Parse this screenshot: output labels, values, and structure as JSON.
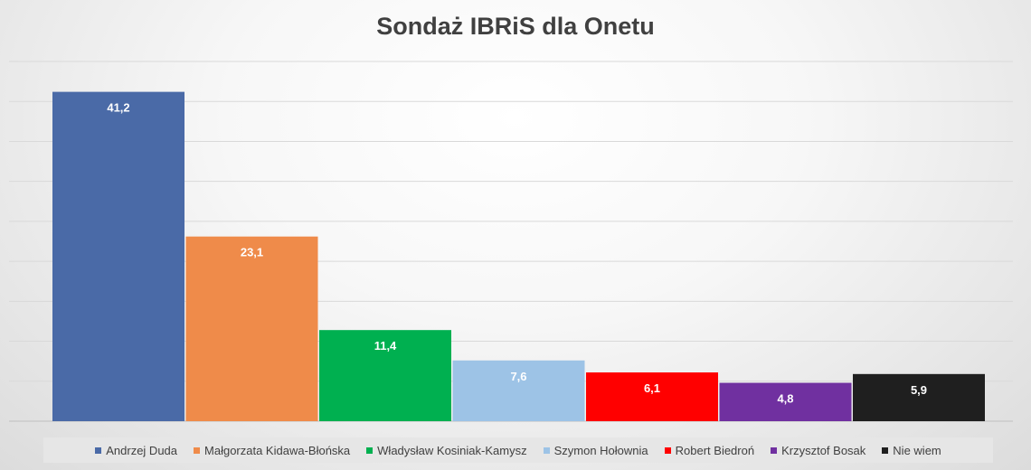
{
  "chart_data": {
    "type": "bar",
    "title": "Sondaż IBRiS dla Onetu",
    "xlabel": "",
    "ylabel": "",
    "ylim": [
      0,
      45
    ],
    "grid": true,
    "legend_position": "bottom",
    "categories": [
      "Andrzej Duda",
      "Małgorzata Kidawa-Błońska",
      "Władysław Kosiniak-Kamysz",
      "Szymon Hołownia",
      "Robert Biedroń",
      "Krzysztof Bosak",
      "Nie wiem"
    ],
    "values": [
      41.2,
      23.1,
      11.4,
      7.6,
      6.1,
      4.8,
      5.9
    ],
    "data_labels": [
      "41,2",
      "23,1",
      "11,4",
      "7,6",
      "6,1",
      "4,8",
      "5,9"
    ],
    "colors": [
      "#4a6aa7",
      "#ef8b4a",
      "#00b050",
      "#9dc3e6",
      "#ff0000",
      "#7030a0",
      "#1f1f1f"
    ]
  }
}
